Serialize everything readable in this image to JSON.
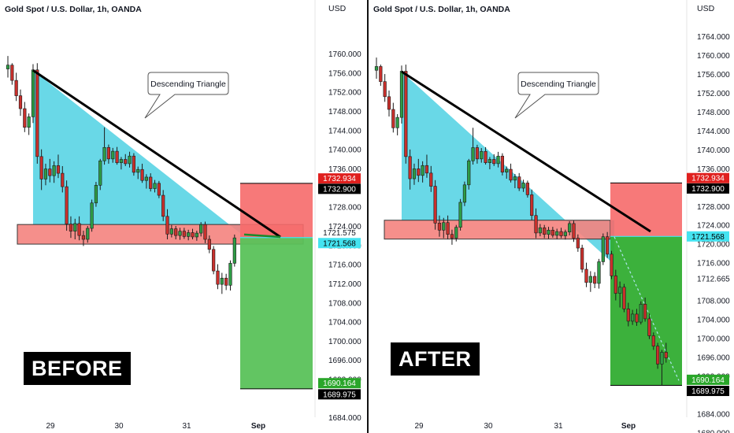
{
  "colors": {
    "bull": "#26a69a",
    "bear": "#ef5350",
    "candle_up": "#2e9c45",
    "candle_down": "#c9302c",
    "triangle_fill": "#61d6e6",
    "zone_fill": "#f4837f",
    "stop_fill": "#f66a6a",
    "target_fill_before": "#5ac25a",
    "target_fill_after": "#31ad31",
    "red_tag": "#e0201e",
    "cyan_tag": "#44e3f0",
    "green_tag": "#2aa62a",
    "black_tag": "#000000"
  },
  "panels": [
    {
      "id": "before",
      "title": "Gold Spot / U.S. Dollar, 1h, OANDA",
      "label": "BEFORE",
      "annotation": "Descending Triangle",
      "axis_unit": "USD",
      "price_ticks": [
        "1760.000",
        "1756.000",
        "1752.000",
        "1748.000",
        "1744.000",
        "1740.000",
        "1736.000",
        "1728.000",
        "1724.000",
        "1720.000",
        "1716.000",
        "1712.000",
        "1708.000",
        "1704.000",
        "1700.000",
        "1696.000",
        "1692.000",
        "1684.000"
      ],
      "time_ticks": [
        "29",
        "30",
        "31",
        "Sep"
      ],
      "price_tags": [
        {
          "text": "1732.934",
          "color": "red",
          "price": 1732.934
        },
        {
          "text": "1732.900",
          "color": "black",
          "price": 1732.9
        },
        {
          "text": "1721.575",
          "color": "plain",
          "price": 1721.575
        },
        {
          "text": "1721.568",
          "color": "cyan",
          "price": 1721.568
        },
        {
          "text": "1690.164",
          "color": "green",
          "price": 1690.164
        },
        {
          "text": "1689.975",
          "color": "black",
          "price": 1689.975
        }
      ]
    },
    {
      "id": "after",
      "title": "Gold Spot / U.S. Dollar, 1h, OANDA",
      "label": "AFTER",
      "annotation": "Descending Triangle",
      "axis_unit": "USD",
      "price_ticks": [
        "1764.000",
        "1760.000",
        "1756.000",
        "1752.000",
        "1748.000",
        "1744.000",
        "1740.000",
        "1736.000",
        "1728.000",
        "1724.000",
        "1720.000",
        "1716.000",
        "1712.665",
        "1708.000",
        "1704.000",
        "1700.000",
        "1696.000",
        "1692.000",
        "1684.000",
        "1680.000"
      ],
      "time_ticks": [
        "29",
        "30",
        "31",
        "Sep"
      ],
      "price_tags": [
        {
          "text": "1732.934",
          "color": "red",
          "price": 1732.934
        },
        {
          "text": "1732.900",
          "color": "black",
          "price": 1732.9
        },
        {
          "text": "1721.568",
          "color": "cyan",
          "price": 1721.568
        },
        {
          "text": "1690.164",
          "color": "green",
          "price": 1690.164
        },
        {
          "text": "1689.975",
          "color": "black",
          "price": 1689.975
        }
      ]
    }
  ],
  "chart_data": [
    {
      "type": "candlestick",
      "title": "Gold Spot / U.S. Dollar, 1h, OANDA",
      "panel_label": "BEFORE",
      "ylabel": "USD",
      "ylim": [
        1681,
        1766
      ],
      "x_tick_labels": [
        "29",
        "30",
        "31",
        "Sep"
      ],
      "annotations": [
        "Descending Triangle"
      ],
      "pattern": {
        "name": "Descending Triangle",
        "resistance_start": 1756.5,
        "resistance_end": 1722.5,
        "support_top": 1724.3,
        "support_bottom": 1720.2
      },
      "trade": {
        "entry": 1721.568,
        "stop": 1732.9,
        "target": 1689.975
      },
      "candles": [
        [
          1756.8,
          1759.5,
          1755.0,
          1757.6
        ],
        [
          1757.6,
          1758.0,
          1753.5,
          1754.4
        ],
        [
          1754.4,
          1756.0,
          1750.1,
          1751.2
        ],
        [
          1751.2,
          1752.5,
          1747.0,
          1748.5
        ],
        [
          1748.5,
          1749.9,
          1743.6,
          1744.6
        ],
        [
          1744.6,
          1747.5,
          1743.0,
          1746.8
        ],
        [
          1746.8,
          1757.8,
          1745.5,
          1756.6
        ],
        [
          1756.6,
          1758.0,
          1737.0,
          1738.5
        ],
        [
          1738.5,
          1740.0,
          1731.5,
          1733.8
        ],
        [
          1733.8,
          1737.0,
          1732.5,
          1735.9
        ],
        [
          1735.9,
          1738.0,
          1733.1,
          1734.5
        ],
        [
          1734.5,
          1737.5,
          1733.0,
          1736.6
        ],
        [
          1736.6,
          1738.9,
          1734.0,
          1735.0
        ],
        [
          1735.0,
          1736.5,
          1731.0,
          1732.2
        ],
        [
          1732.2,
          1733.5,
          1723.0,
          1724.4
        ],
        [
          1724.4,
          1726.0,
          1721.5,
          1722.9
        ],
        [
          1722.9,
          1725.5,
          1721.2,
          1724.5
        ],
        [
          1724.5,
          1726.0,
          1721.0,
          1722.0
        ],
        [
          1722.0,
          1723.0,
          1719.8,
          1721.2
        ],
        [
          1721.2,
          1724.0,
          1720.5,
          1723.5
        ],
        [
          1723.5,
          1729.5,
          1722.8,
          1728.8
        ],
        [
          1728.8,
          1733.2,
          1728.0,
          1732.5
        ],
        [
          1732.5,
          1738.0,
          1731.5,
          1737.6
        ],
        [
          1737.6,
          1744.6,
          1736.8,
          1740.4
        ],
        [
          1740.4,
          1741.0,
          1737.0,
          1738.0
        ],
        [
          1738.0,
          1740.3,
          1737.2,
          1739.6
        ],
        [
          1739.6,
          1740.5,
          1736.8,
          1737.2
        ],
        [
          1737.2,
          1738.4,
          1735.8,
          1737.9
        ],
        [
          1737.9,
          1739.0,
          1736.5,
          1737.0
        ],
        [
          1737.0,
          1739.5,
          1736.2,
          1738.6
        ],
        [
          1738.6,
          1739.2,
          1734.5,
          1735.2
        ],
        [
          1735.2,
          1736.4,
          1733.8,
          1735.8
        ],
        [
          1735.8,
          1737.0,
          1733.0,
          1733.5
        ],
        [
          1733.5,
          1734.8,
          1731.8,
          1734.2
        ],
        [
          1734.2,
          1735.0,
          1731.2,
          1731.8
        ],
        [
          1731.8,
          1733.6,
          1731.0,
          1732.9
        ],
        [
          1732.9,
          1733.4,
          1729.8,
          1730.4
        ],
        [
          1730.4,
          1731.5,
          1725.0,
          1726.0
        ],
        [
          1726.0,
          1727.5,
          1721.2,
          1722.3
        ],
        [
          1722.3,
          1724.2,
          1721.6,
          1723.4
        ],
        [
          1723.4,
          1724.0,
          1721.2,
          1722.0
        ],
        [
          1722.0,
          1723.6,
          1721.1,
          1722.9
        ],
        [
          1722.9,
          1723.6,
          1721.3,
          1721.8
        ],
        [
          1721.8,
          1723.2,
          1721.0,
          1722.6
        ],
        [
          1722.6,
          1723.4,
          1721.2,
          1721.7
        ],
        [
          1721.7,
          1723.0,
          1720.9,
          1722.5
        ],
        [
          1722.5,
          1724.8,
          1721.8,
          1724.3
        ],
        [
          1724.3,
          1724.9,
          1720.4,
          1721.2
        ],
        [
          1721.2,
          1722.0,
          1718.3,
          1719.1
        ],
        [
          1719.1,
          1719.8,
          1713.9,
          1714.6
        ],
        [
          1714.6,
          1716.0,
          1710.8,
          1711.8
        ],
        [
          1711.8,
          1714.2,
          1709.8,
          1713.1
        ],
        [
          1713.1,
          1714.0,
          1710.6,
          1711.6
        ],
        [
          1711.6,
          1716.8,
          1710.5,
          1716.2
        ],
        [
          1716.2,
          1722.2,
          1715.5,
          1721.5
        ]
      ]
    },
    {
      "type": "candlestick",
      "title": "Gold Spot / U.S. Dollar, 1h, OANDA",
      "panel_label": "AFTER",
      "ylabel": "USD",
      "ylim": [
        1679,
        1766
      ],
      "x_tick_labels": [
        "29",
        "30",
        "31",
        "Sep"
      ],
      "annotations": [
        "Descending Triangle"
      ],
      "pattern": {
        "name": "Descending Triangle",
        "resistance_start": 1756.5,
        "resistance_end": 1715.6,
        "support_top": 1725.0,
        "support_bottom": 1721.0
      },
      "trade": {
        "entry": 1721.568,
        "stop": 1732.9,
        "target": 1689.975
      },
      "candles": [
        [
          1756.8,
          1759.5,
          1755.0,
          1757.6
        ],
        [
          1757.6,
          1758.0,
          1753.5,
          1754.4
        ],
        [
          1754.4,
          1756.0,
          1750.1,
          1751.2
        ],
        [
          1751.2,
          1752.5,
          1747.0,
          1748.5
        ],
        [
          1748.5,
          1749.9,
          1743.6,
          1744.6
        ],
        [
          1744.6,
          1747.5,
          1743.0,
          1746.8
        ],
        [
          1746.8,
          1757.8,
          1745.5,
          1756.6
        ],
        [
          1756.6,
          1758.0,
          1737.0,
          1738.5
        ],
        [
          1738.5,
          1740.0,
          1731.5,
          1733.8
        ],
        [
          1733.8,
          1737.0,
          1732.5,
          1735.9
        ],
        [
          1735.9,
          1738.0,
          1733.1,
          1734.5
        ],
        [
          1734.5,
          1737.5,
          1733.0,
          1736.6
        ],
        [
          1736.6,
          1738.9,
          1734.0,
          1735.0
        ],
        [
          1735.0,
          1736.5,
          1731.0,
          1732.2
        ],
        [
          1732.2,
          1733.5,
          1723.0,
          1724.4
        ],
        [
          1724.4,
          1726.0,
          1721.5,
          1722.9
        ],
        [
          1722.9,
          1725.5,
          1721.2,
          1724.5
        ],
        [
          1724.5,
          1726.0,
          1721.0,
          1722.0
        ],
        [
          1722.0,
          1723.0,
          1719.8,
          1721.2
        ],
        [
          1721.2,
          1724.0,
          1720.5,
          1723.5
        ],
        [
          1723.5,
          1729.5,
          1722.8,
          1728.8
        ],
        [
          1728.8,
          1733.2,
          1728.0,
          1732.5
        ],
        [
          1732.5,
          1738.0,
          1731.5,
          1737.6
        ],
        [
          1737.6,
          1744.6,
          1736.8,
          1740.4
        ],
        [
          1740.4,
          1741.0,
          1737.0,
          1738.0
        ],
        [
          1738.0,
          1740.3,
          1737.2,
          1739.6
        ],
        [
          1739.6,
          1740.5,
          1736.8,
          1737.2
        ],
        [
          1737.2,
          1738.4,
          1735.8,
          1737.9
        ],
        [
          1737.9,
          1739.0,
          1736.5,
          1737.0
        ],
        [
          1737.0,
          1739.5,
          1736.2,
          1738.6
        ],
        [
          1738.6,
          1739.2,
          1734.5,
          1735.2
        ],
        [
          1735.2,
          1736.4,
          1733.8,
          1735.8
        ],
        [
          1735.8,
          1737.0,
          1733.0,
          1733.5
        ],
        [
          1733.5,
          1734.8,
          1731.8,
          1734.2
        ],
        [
          1734.2,
          1735.0,
          1731.2,
          1731.8
        ],
        [
          1731.8,
          1733.6,
          1731.0,
          1732.9
        ],
        [
          1732.9,
          1733.4,
          1729.8,
          1730.4
        ],
        [
          1730.4,
          1731.5,
          1725.0,
          1726.0
        ],
        [
          1726.0,
          1727.5,
          1721.2,
          1722.3
        ],
        [
          1722.3,
          1724.2,
          1721.6,
          1723.4
        ],
        [
          1723.4,
          1724.0,
          1721.2,
          1722.0
        ],
        [
          1722.0,
          1723.6,
          1721.1,
          1722.9
        ],
        [
          1722.9,
          1723.6,
          1721.3,
          1721.8
        ],
        [
          1721.8,
          1723.2,
          1721.0,
          1722.6
        ],
        [
          1722.6,
          1723.4,
          1721.2,
          1721.7
        ],
        [
          1721.7,
          1723.0,
          1720.9,
          1722.5
        ],
        [
          1722.5,
          1724.8,
          1721.8,
          1724.3
        ],
        [
          1724.3,
          1724.9,
          1720.4,
          1721.2
        ],
        [
          1721.2,
          1722.0,
          1718.3,
          1719.1
        ],
        [
          1719.1,
          1719.8,
          1713.9,
          1714.6
        ],
        [
          1714.6,
          1716.0,
          1710.8,
          1711.8
        ],
        [
          1711.8,
          1714.2,
          1709.8,
          1713.1
        ],
        [
          1713.1,
          1714.0,
          1710.6,
          1711.6
        ],
        [
          1711.6,
          1716.8,
          1710.5,
          1716.2
        ],
        [
          1716.2,
          1722.2,
          1715.5,
          1721.5
        ],
        [
          1721.5,
          1722.5,
          1717.0,
          1717.8
        ],
        [
          1717.8,
          1718.5,
          1712.5,
          1713.2
        ],
        [
          1713.2,
          1714.5,
          1708.0,
          1709.5
        ],
        [
          1709.5,
          1712.0,
          1706.5,
          1710.8
        ],
        [
          1710.8,
          1711.5,
          1705.5,
          1706.2
        ],
        [
          1706.2,
          1707.5,
          1702.5,
          1703.6
        ],
        [
          1703.6,
          1706.0,
          1702.8,
          1705.1
        ],
        [
          1705.1,
          1706.2,
          1702.6,
          1703.4
        ],
        [
          1703.4,
          1707.8,
          1702.9,
          1707.2
        ],
        [
          1707.2,
          1708.6,
          1703.5,
          1704.1
        ],
        [
          1704.1,
          1705.2,
          1699.8,
          1700.5
        ],
        [
          1700.5,
          1701.2,
          1697.5,
          1698.3
        ],
        [
          1698.3,
          1699.0,
          1693.5,
          1694.5
        ],
        [
          1694.5,
          1697.5,
          1690.0,
          1697.0
        ],
        [
          1697.0,
          1699.0,
          1694.8,
          1695.8
        ]
      ]
    }
  ]
}
